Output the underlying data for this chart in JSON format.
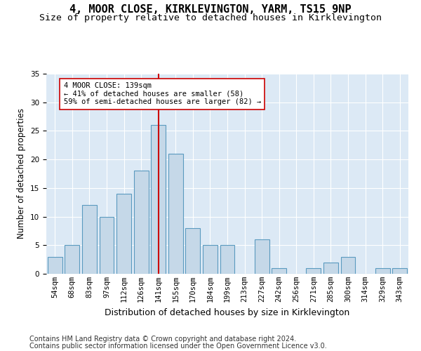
{
  "title": "4, MOOR CLOSE, KIRKLEVINGTON, YARM, TS15 9NP",
  "subtitle": "Size of property relative to detached houses in Kirklevington",
  "xlabel": "Distribution of detached houses by size in Kirklevington",
  "ylabel": "Number of detached properties",
  "categories": [
    "54sqm",
    "68sqm",
    "83sqm",
    "97sqm",
    "112sqm",
    "126sqm",
    "141sqm",
    "155sqm",
    "170sqm",
    "184sqm",
    "199sqm",
    "213sqm",
    "227sqm",
    "242sqm",
    "256sqm",
    "271sqm",
    "285sqm",
    "300sqm",
    "314sqm",
    "329sqm",
    "343sqm"
  ],
  "values": [
    3,
    5,
    12,
    10,
    14,
    18,
    26,
    21,
    8,
    5,
    5,
    0,
    6,
    1,
    0,
    1,
    2,
    3,
    0,
    1,
    1
  ],
  "bar_color": "#c5d8e8",
  "bar_edgecolor": "#5a9abf",
  "vline_index": 6,
  "vline_color": "#cc0000",
  "annotation_text": "4 MOOR CLOSE: 139sqm\n← 41% of detached houses are smaller (58)\n59% of semi-detached houses are larger (82) →",
  "annotation_box_edgecolor": "#cc0000",
  "annotation_box_facecolor": "white",
  "ylim": [
    0,
    35
  ],
  "yticks": [
    0,
    5,
    10,
    15,
    20,
    25,
    30,
    35
  ],
  "background_color": "#dce9f5",
  "footer1": "Contains HM Land Registry data © Crown copyright and database right 2024.",
  "footer2": "Contains public sector information licensed under the Open Government Licence v3.0.",
  "title_fontsize": 11,
  "subtitle_fontsize": 9.5,
  "xlabel_fontsize": 9,
  "ylabel_fontsize": 8.5,
  "tick_fontsize": 7.5,
  "annotation_fontsize": 7.5,
  "footer_fontsize": 7
}
